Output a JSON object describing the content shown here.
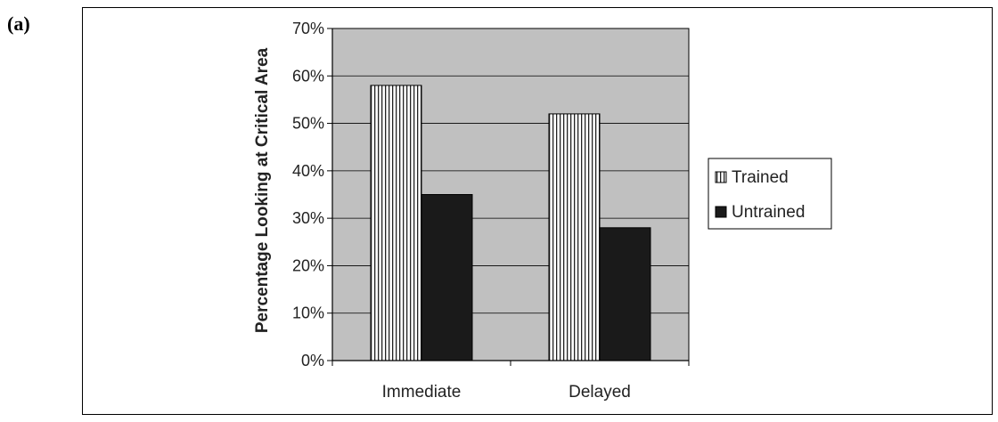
{
  "panel_label": "(a)",
  "chart_data": {
    "type": "bar",
    "title": "",
    "xlabel": "",
    "ylabel": "Percentage Looking at Critical Area",
    "categories": [
      "Immediate",
      "Delayed"
    ],
    "series": [
      {
        "name": "Trained",
        "values": [
          58,
          52
        ],
        "pattern": "vertical-stripes"
      },
      {
        "name": "Untrained",
        "values": [
          35,
          28
        ],
        "pattern": "solid-black"
      }
    ],
    "ylim": [
      0,
      70
    ],
    "yticks": [
      0,
      10,
      20,
      30,
      40,
      50,
      60,
      70
    ],
    "ytick_labels": [
      "0%",
      "10%",
      "20%",
      "30%",
      "40%",
      "50%",
      "60%",
      "70%"
    ],
    "grid": true,
    "legend_position": "right",
    "colors": {
      "plot_background": "#c0c0c0",
      "untrained": "#1a1a1a",
      "trained_fill": "#ffffff",
      "trained_stripe": "#222222"
    }
  }
}
